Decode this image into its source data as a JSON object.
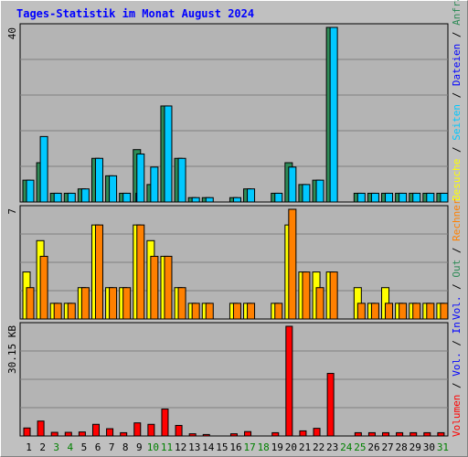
{
  "title": "Tages-Statistik im Monat August 2024",
  "colors": {
    "background": "#c0c0c0",
    "plot_bg": "#b4b4b4",
    "grid": "#808080",
    "title": "#0000ff",
    "anfragen": "#2e8b57",
    "dateien": "#0000ff",
    "seiten": "#00c8ff",
    "besuche": "#ffff00",
    "rechner": "#ff8000",
    "volumen": "#ff0000",
    "weekday": "#000000",
    "weekend": "#008000"
  },
  "chart_data": [
    {
      "type": "bar",
      "panel": "top",
      "max_label": "40",
      "ylim": [
        0,
        40
      ],
      "categories": [
        "1",
        "2",
        "3",
        "4",
        "5",
        "6",
        "7",
        "8",
        "9",
        "10",
        "11",
        "12",
        "13",
        "14",
        "15",
        "16",
        "17",
        "18",
        "19",
        "20",
        "21",
        "22",
        "23",
        "24",
        "25",
        "26",
        "27",
        "28",
        "29",
        "30",
        "31"
      ],
      "series": [
        {
          "name": "Anfragen",
          "values": [
            5,
            9,
            2,
            2,
            3,
            10,
            6,
            2,
            12,
            4,
            22,
            10,
            1,
            1,
            0,
            1,
            3,
            0,
            2,
            9,
            4,
            5,
            40,
            0,
            2,
            2,
            2,
            2,
            2,
            2,
            2
          ]
        },
        {
          "name": "Dateien",
          "values": [
            0,
            0,
            0,
            0,
            0,
            0,
            0,
            0,
            2,
            0,
            0,
            0,
            0,
            0,
            0,
            0,
            0,
            0,
            0,
            0,
            0,
            0,
            0,
            0,
            0,
            0,
            0,
            0,
            0,
            0,
            0
          ]
        },
        {
          "name": "Seiten",
          "values": [
            5,
            15,
            2,
            2,
            3,
            10,
            6,
            2,
            11,
            8,
            22,
            10,
            1,
            1,
            0,
            1,
            3,
            0,
            2,
            8,
            4,
            5,
            40,
            0,
            2,
            2,
            2,
            2,
            2,
            2,
            2
          ]
        }
      ]
    },
    {
      "type": "bar",
      "panel": "middle",
      "max_label": "7",
      "ylim": [
        0,
        7
      ],
      "series": [
        {
          "name": "Besuche",
          "values": [
            3,
            5,
            1,
            1,
            2,
            6,
            2,
            2,
            6,
            5,
            4,
            2,
            1,
            1,
            0,
            1,
            1,
            0,
            1,
            6,
            3,
            3,
            3,
            0,
            2,
            1,
            2,
            1,
            1,
            1,
            1
          ]
        },
        {
          "name": "Rechner",
          "values": [
            2,
            4,
            1,
            1,
            2,
            6,
            2,
            2,
            6,
            4,
            4,
            2,
            1,
            1,
            0,
            1,
            1,
            0,
            1,
            7,
            3,
            2,
            3,
            0,
            1,
            1,
            1,
            1,
            1,
            1,
            1
          ]
        }
      ]
    },
    {
      "type": "bar",
      "panel": "bottom",
      "max_label": "30.15 KB",
      "ylim": [
        0,
        30.15
      ],
      "series": [
        {
          "name": "Volumen",
          "values": [
            2.2,
            4.1,
            1.0,
            1.0,
            1.1,
            3.2,
            2.0,
            0.9,
            3.6,
            3.2,
            7.4,
            2.9,
            0.6,
            0.4,
            0,
            0.6,
            1.2,
            0,
            0.9,
            30.15,
            1.4,
            2.1,
            17.2,
            0,
            0.9,
            0.9,
            0.9,
            0.9,
            0.9,
            0.9,
            0.9
          ]
        }
      ]
    }
  ],
  "right_legend": {
    "top": [
      "Anfragen",
      "Dateien",
      "Seiten",
      "Besuche"
    ],
    "middle": [
      "Rechner",
      "Out",
      "Vol."
    ],
    "bottom": [
      "In",
      "Vol.",
      "Volumen"
    ],
    "separator": "/"
  },
  "x_labels": [
    "1",
    "2",
    "3",
    "4",
    "5",
    "6",
    "7",
    "8",
    "9",
    "10",
    "11",
    "12",
    "13",
    "14",
    "15",
    "16",
    "17",
    "18",
    "19",
    "20",
    "21",
    "22",
    "23",
    "24",
    "25",
    "26",
    "27",
    "28",
    "29",
    "30",
    "31"
  ],
  "weekend_days": [
    3,
    4,
    10,
    11,
    17,
    18,
    24,
    25,
    31
  ]
}
